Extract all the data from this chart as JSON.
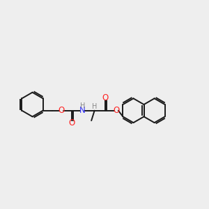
{
  "background_color": "#eeeeee",
  "bond_color": "#1a1a1a",
  "N_color": "#3333ff",
  "O_color": "#ff2222",
  "H_color": "#888888",
  "line_width": 1.4,
  "fig_width": 3.0,
  "fig_height": 3.0,
  "xlim": [
    0,
    10
  ],
  "ylim": [
    2,
    8
  ]
}
